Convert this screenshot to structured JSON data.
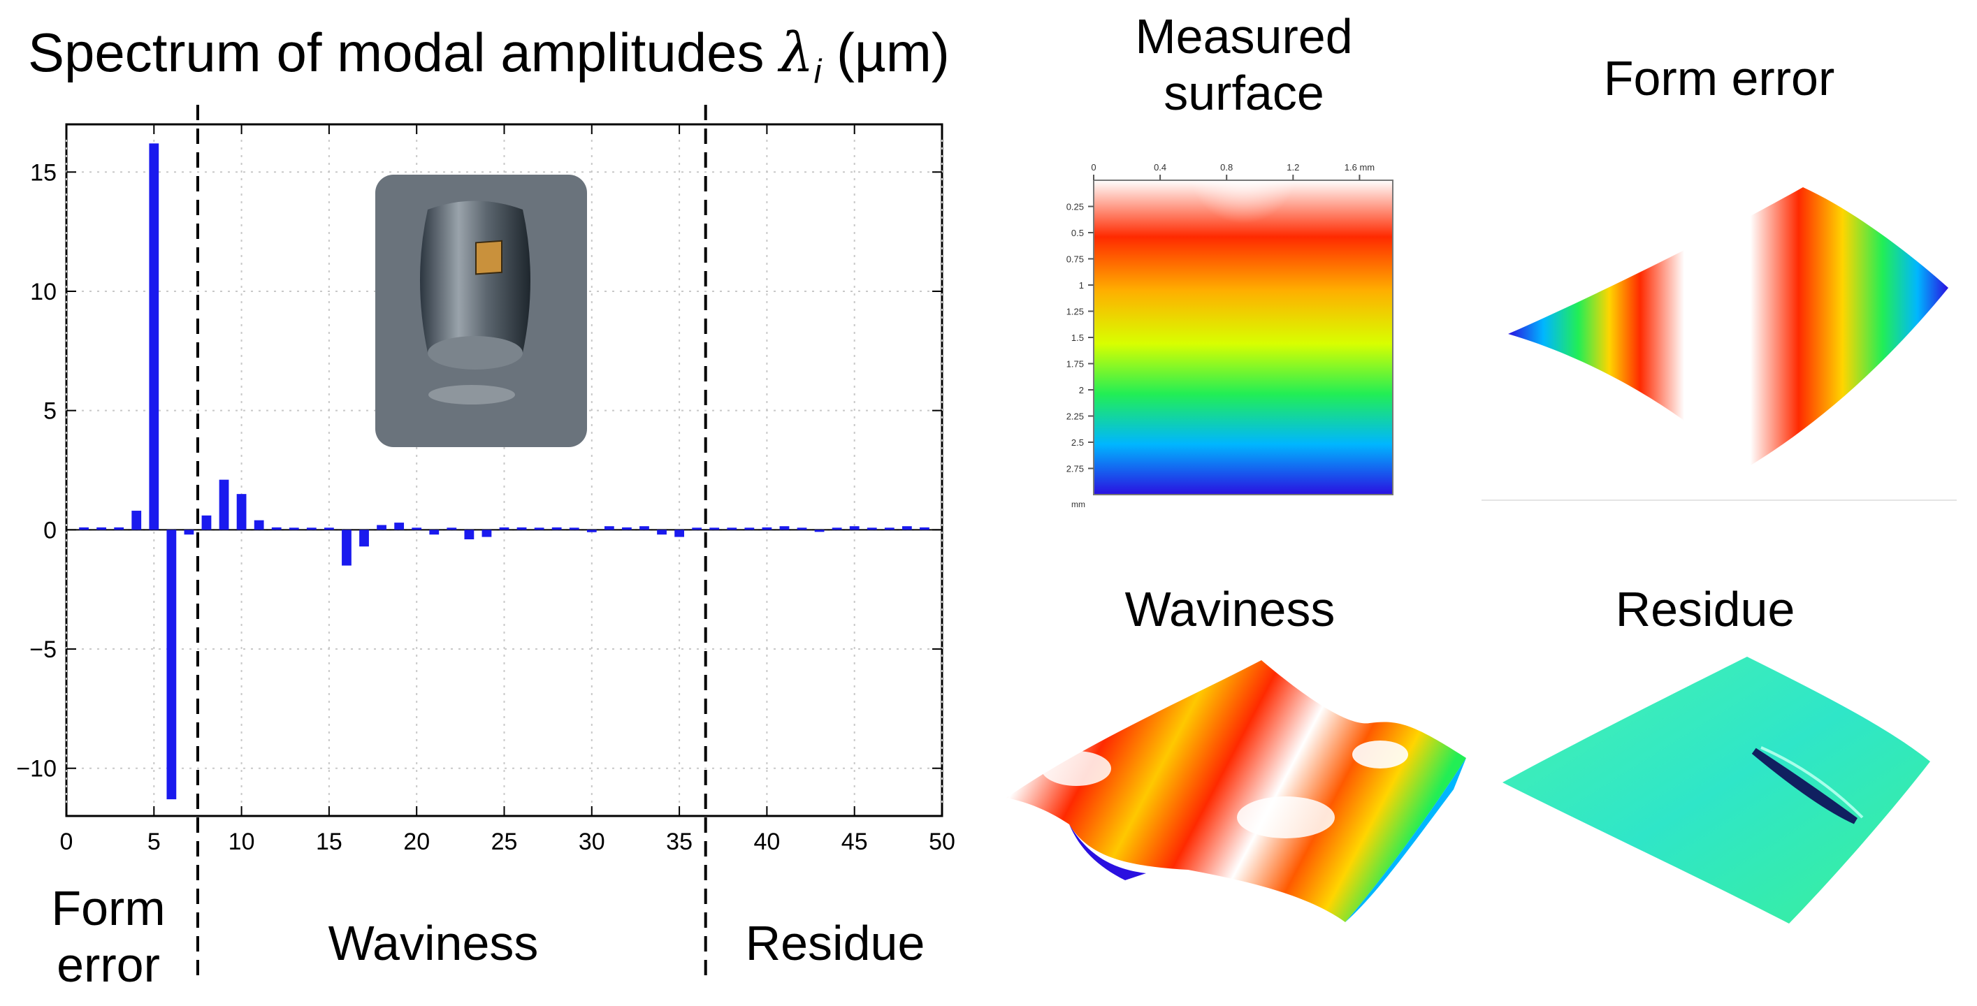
{
  "title": {
    "prefix": "Spectrum of modal amplitudes ",
    "symbol": "λ",
    "subscript": "i",
    "suffix": " (µm)"
  },
  "chart_data": {
    "type": "bar",
    "title": "Spectrum of modal amplitudes λi (µm)",
    "xlabel": "",
    "ylabel": "",
    "xlim": [
      0,
      50
    ],
    "ylim": [
      -12,
      17
    ],
    "xticks": [
      0,
      5,
      10,
      15,
      20,
      25,
      30,
      35,
      40,
      45,
      50
    ],
    "yticks": [
      -10,
      -5,
      0,
      5,
      10,
      15
    ],
    "xtick_labels": [
      "0",
      "5",
      "10",
      "15",
      "20",
      "25",
      "30",
      "35",
      "40",
      "45",
      "50"
    ],
    "ytick_labels": [
      "−10",
      "−5",
      "0",
      "5",
      "10",
      "15"
    ],
    "grid": true,
    "bar_color": "#1a1aee",
    "x": [
      1,
      2,
      3,
      4,
      5,
      6,
      7,
      8,
      9,
      10,
      11,
      12,
      13,
      14,
      15,
      16,
      17,
      18,
      19,
      20,
      21,
      22,
      23,
      24,
      25,
      26,
      27,
      28,
      29,
      30,
      31,
      32,
      33,
      34,
      35,
      36,
      37,
      38,
      39,
      40,
      41,
      42,
      43,
      44,
      45,
      46,
      47,
      48,
      49
    ],
    "values": [
      0.1,
      0.1,
      0.1,
      0.8,
      16.2,
      -11.3,
      -0.2,
      0.6,
      2.1,
      1.5,
      0.4,
      0.1,
      0.05,
      0.05,
      0.05,
      -1.5,
      -0.7,
      0.2,
      0.3,
      0.05,
      -0.2,
      0.05,
      -0.4,
      -0.3,
      0.1,
      0.1,
      0.05,
      0.1,
      0.05,
      -0.1,
      0.15,
      0.1,
      0.15,
      -0.2,
      -0.3,
      0.05,
      0.05,
      0.05,
      0.05,
      0.1,
      0.15,
      0.05,
      -0.05,
      0.05,
      0.15,
      0.05,
      0.05,
      0.15,
      0.1
    ],
    "dividers": [
      7.5,
      36.5
    ],
    "regions": [
      "Form error",
      "Waviness",
      "Residue"
    ]
  },
  "region_labels": {
    "form_line1": "Form",
    "form_line2": "error",
    "waviness": "Waviness",
    "residue": "Residue"
  },
  "panels": {
    "measured_line1": "Measured",
    "measured_line2": "surface",
    "form_error": "Form error",
    "waviness": "Waviness",
    "residue": "Residue"
  },
  "measured_axes": {
    "top_ticks": [
      "0",
      "0.4",
      "0.8",
      "1.2",
      "1.6 mm"
    ],
    "left_ticks": [
      "0.25",
      "0.5",
      "0.75",
      "1",
      "1.25",
      "1.5",
      "1.75",
      "2",
      "2.25",
      "2.5",
      "2.75"
    ],
    "left_unit": "mm"
  }
}
